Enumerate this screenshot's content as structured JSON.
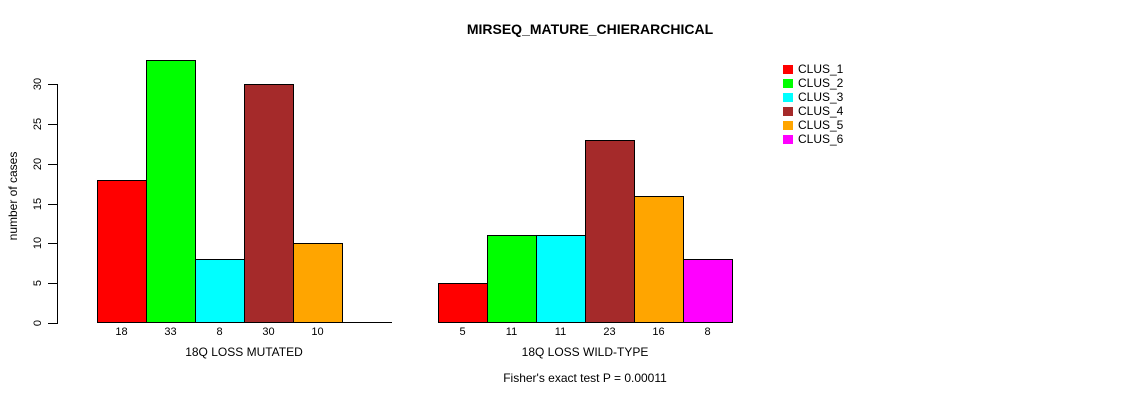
{
  "chart_data": {
    "type": "bar",
    "title": "MIRSEQ_MATURE_CHIERARCHICAL",
    "ylabel": "number of cases",
    "annotation": "Fisher's exact test P = 0.00011",
    "ylim": [
      0,
      33
    ],
    "yticks": [
      0,
      5,
      10,
      15,
      20,
      25,
      30
    ],
    "grid": false,
    "legend_position": "right",
    "series": [
      {
        "name": "CLUS_1",
        "color": "#FF0000"
      },
      {
        "name": "CLUS_2",
        "color": "#00FF00"
      },
      {
        "name": "CLUS_3",
        "color": "#00FFFF"
      },
      {
        "name": "CLUS_4",
        "color": "#A52A2A"
      },
      {
        "name": "CLUS_5",
        "color": "#FFA500"
      },
      {
        "name": "CLUS_6",
        "color": "#FF00FF"
      }
    ],
    "groups": [
      {
        "label": "18Q LOSS MUTATED",
        "values": [
          18,
          33,
          8,
          30,
          10,
          0
        ],
        "bar_labels": [
          "18",
          "33",
          "8",
          "30",
          "10",
          ""
        ]
      },
      {
        "label": "18Q LOSS WILD-TYPE",
        "values": [
          5,
          11,
          11,
          23,
          16,
          8
        ],
        "bar_labels": [
          "5",
          "11",
          "11",
          "23",
          "16",
          "8"
        ]
      }
    ]
  }
}
